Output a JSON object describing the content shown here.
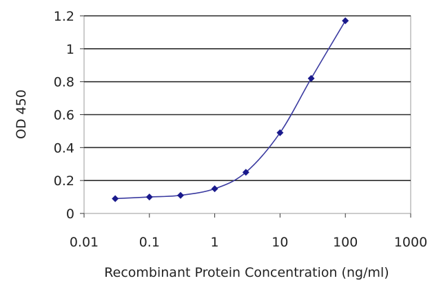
{
  "chart_data": {
    "type": "line",
    "title": "",
    "xlabel": "Recombinant Protein Concentration (ng/ml)",
    "ylabel": "OD 450",
    "x_scale": "log",
    "xlim": [
      0.01,
      1000
    ],
    "ylim": [
      0,
      1.2
    ],
    "x_ticks": [
      "0.01",
      "0.1",
      "1",
      "10",
      "100",
      "1000"
    ],
    "y_ticks": [
      "0",
      "0.2",
      "0.4",
      "0.6",
      "0.8",
      "1",
      "1.2"
    ],
    "grid": "horizontal",
    "legend": "none",
    "series": [
      {
        "x": [
          0.03,
          0.1,
          0.3,
          1,
          3,
          10,
          30,
          100
        ],
        "y": [
          0.09,
          0.1,
          0.11,
          0.15,
          0.25,
          0.49,
          0.82,
          1.17
        ]
      }
    ],
    "colors": {
      "line": "#3a3aa0",
      "marker": "#1a1a8c",
      "grid": "#2a2a2a",
      "plot_background": "#ffffff",
      "frame": "#9a9a9a"
    }
  }
}
